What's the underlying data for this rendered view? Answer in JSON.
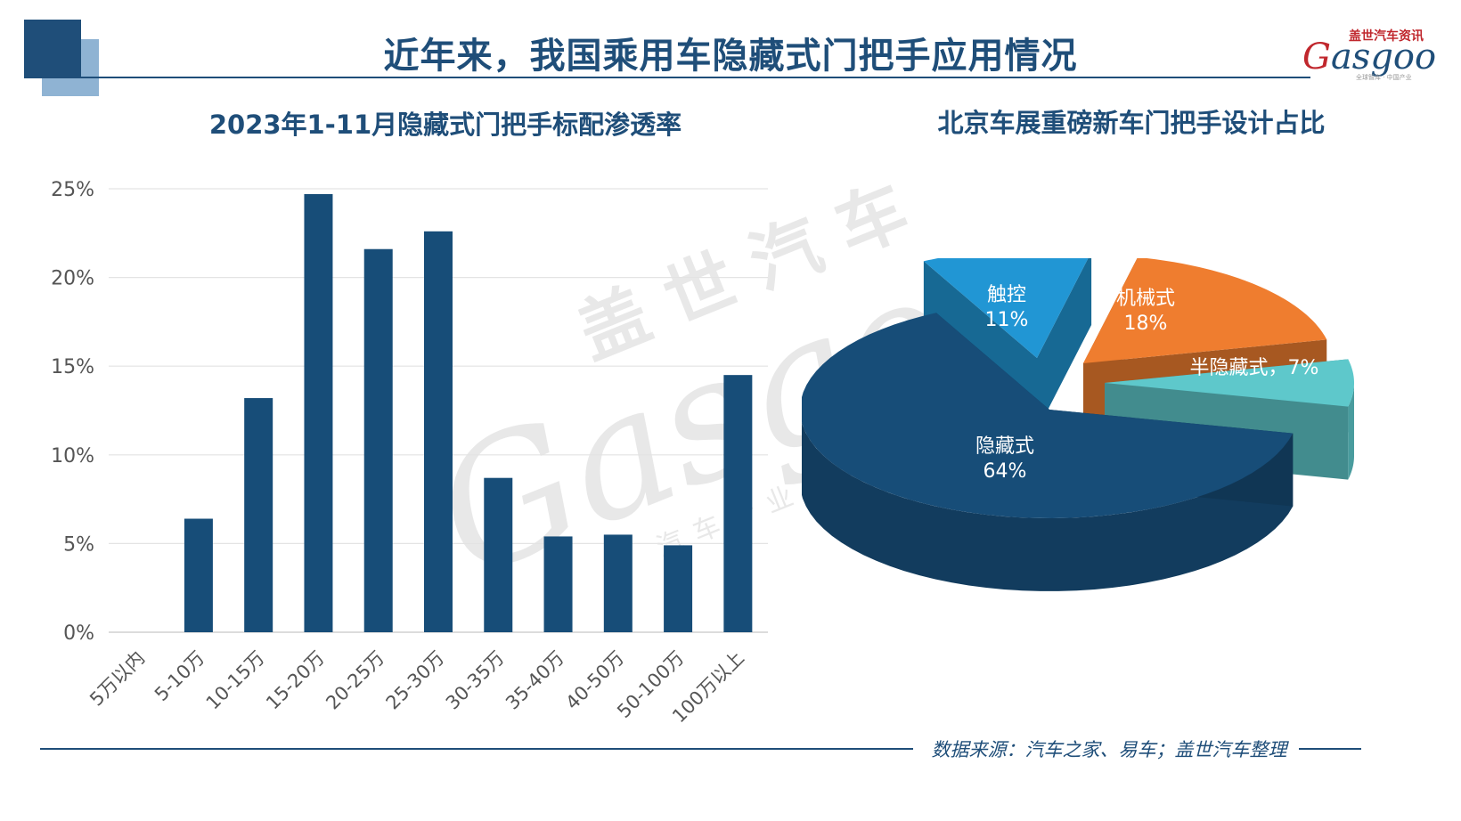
{
  "page": {
    "title": "近年来，我国乘用车隐藏式门把手应用情况",
    "source": "数据来源：汽车之家、易车；盖世汽车整理"
  },
  "logo": {
    "cn": "盖世汽车资讯",
    "en_g": "G",
    "en_rest": "asgoo",
    "tagline": "全球智库 · 中国产业"
  },
  "watermark": {
    "cn": "盖世汽车",
    "en": "Gasgoo",
    "tagline": "汽车产业信息服"
  },
  "colors": {
    "primary": "#1f4e79",
    "bar": "#174d78",
    "pie_hidden": "#174d78",
    "pie_touch": "#2196d4",
    "pie_mech": "#ef7d2f",
    "pie_semi": "#5ec8cb"
  },
  "chart_data": [
    {
      "type": "bar",
      "title": "2023年1-11月隐藏式门把手标配渗透率",
      "categories": [
        "5万以内",
        "5-10万",
        "10-15万",
        "15-20万",
        "20-25万",
        "25-30万",
        "30-35万",
        "35-40万",
        "40-50万",
        "50-100万",
        "100万以上"
      ],
      "values": [
        0,
        6.4,
        13.2,
        24.7,
        21.6,
        22.6,
        8.7,
        5.4,
        5.5,
        4.9,
        14.5
      ],
      "value_unit": "%",
      "ylim": [
        0,
        25
      ],
      "yticks": [
        "0%",
        "5%",
        "10%",
        "15%",
        "20%",
        "25%"
      ],
      "grid": true,
      "legend": "none"
    },
    {
      "type": "pie",
      "title": "北京车展重磅新车门把手设计占比",
      "slices": [
        {
          "label": "隐藏式",
          "percent_text": "64%",
          "value": 64
        },
        {
          "label": "触控",
          "percent_text": "11%",
          "value": 11
        },
        {
          "label": "机械式",
          "percent_text": "18%",
          "value": 18
        },
        {
          "label": "半隐藏式，7%",
          "value": 7
        }
      ],
      "style": "3d-exploded"
    }
  ]
}
